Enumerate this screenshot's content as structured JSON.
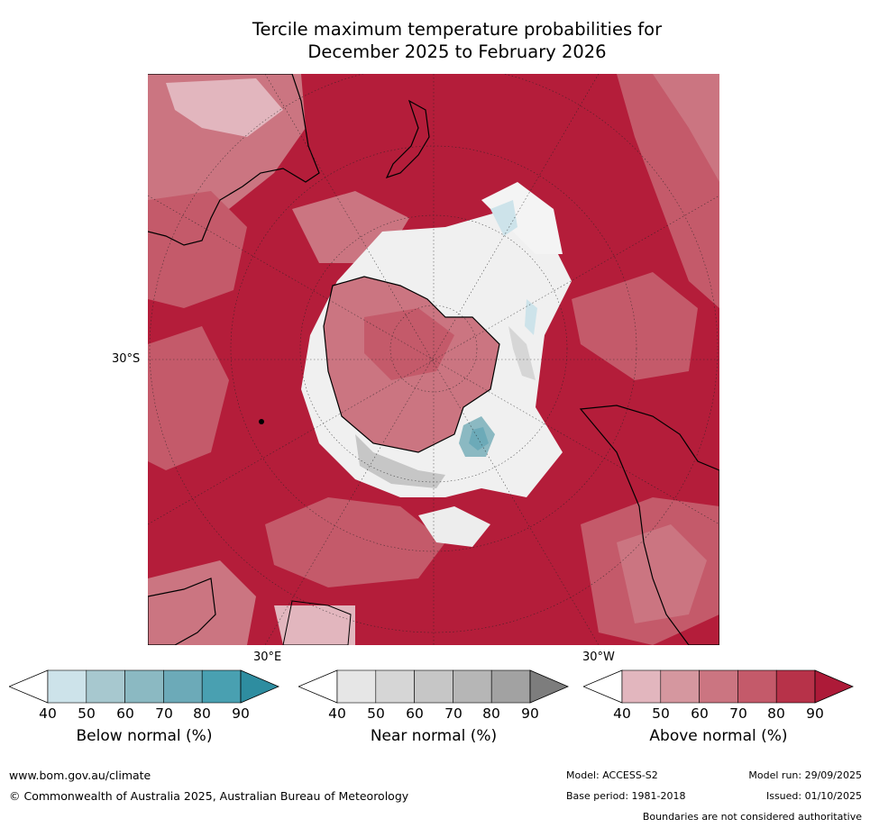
{
  "title": {
    "line1": "Tercile maximum temperature probabilities for",
    "line2": "December 2025 to February 2026"
  },
  "map": {
    "lat_label": "30°S",
    "lon_label_left": "30°E",
    "lon_label_right": "30°W"
  },
  "colorbars": [
    {
      "label": "Below normal (%)",
      "ticks": [
        "40",
        "50",
        "60",
        "70",
        "80",
        "90"
      ],
      "colors": [
        "#ffffff",
        "#cde3ea",
        "#a7c8cf",
        "#8bb9c2",
        "#6caab8",
        "#49a0b1",
        "#2e8da0"
      ]
    },
    {
      "label": "Near normal (%)",
      "ticks": [
        "40",
        "50",
        "60",
        "70",
        "80",
        "90"
      ],
      "colors": [
        "#ffffff",
        "#e6e6e6",
        "#d6d6d6",
        "#c6c6c6",
        "#b6b6b6",
        "#a2a2a2",
        "#7d7d7d"
      ]
    },
    {
      "label": "Above normal (%)",
      "ticks": [
        "40",
        "50",
        "60",
        "70",
        "80",
        "90"
      ],
      "colors": [
        "#ffffff",
        "#e2b6be",
        "#d5979f",
        "#cb7581",
        "#c45a6a",
        "#b73249",
        "#ad1a38"
      ]
    }
  ],
  "footer": {
    "website": "www.bom.gov.au/climate",
    "copyright": "© Commonwealth of Australia 2025, Australian Bureau of Meteorology",
    "model": "Model: ACCESS-S2",
    "base_period": "Base period: 1981-2018",
    "model_run": "Model run: 29/09/2025",
    "issued": "Issued: 01/10/2025",
    "disclaimer": "Boundaries are not considered authoritative"
  }
}
